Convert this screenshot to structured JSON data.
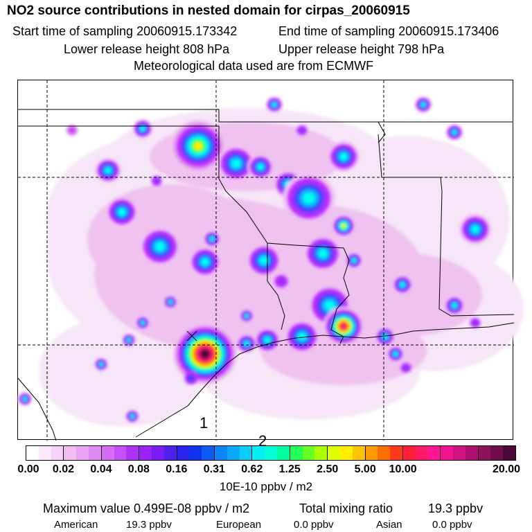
{
  "header": {
    "title": "NO2 source contributions in nested domain for cirpas_20060915",
    "start_label": "Start time of sampling 20060915.173342",
    "end_label": "End time of sampling 20060915.173406",
    "lower_label": "Lower release height  808 hPa",
    "upper_label": "Upper release height  798 hPa",
    "met_label": "Meteorological data used are from ECMWF"
  },
  "map": {
    "site_labels": [
      "1",
      "2"
    ],
    "colors": {
      "faint": "#f7e6f7",
      "light_pink": "#efc2ef",
      "pink": "#e090f0",
      "magenta": "#cc33ff",
      "violet": "#9933ff",
      "blue": "#3344ff",
      "sky": "#11aaff",
      "cyan": "#00ffee",
      "green": "#33ff33",
      "yellow": "#ffee00",
      "orange": "#ff9900",
      "red": "#ff2222",
      "hotpink": "#ff1493",
      "maroon": "#7a1040",
      "dark": "#3a0a30"
    }
  },
  "colorbar": {
    "colors": [
      "#ffffff",
      "#fbe8fb",
      "#f6d2f6",
      "#f0bcf2",
      "#e9a3f2",
      "#e08af2",
      "#d46ff5",
      "#c550f8",
      "#b031fa",
      "#9b22f8",
      "#7a1cf4",
      "#5020f0",
      "#2a22ef",
      "#0f33f0",
      "#0b5cf4",
      "#0a84f7",
      "#09a8f9",
      "#08cdf9",
      "#06eef4",
      "#00ffd6",
      "#00ffa0",
      "#22ff55",
      "#66ff22",
      "#aaff00",
      "#dfff00",
      "#ffee00",
      "#ffc400",
      "#ff9a00",
      "#ff6f00",
      "#ff3a1a",
      "#ff1f3a",
      "#ff1a66",
      "#ff1493",
      "#f0128f",
      "#d0127f",
      "#b0106f",
      "#901060",
      "#6e0c4c",
      "#4c0838"
    ],
    "tick_every": 3,
    "tick_labels": [
      "0.00",
      "0.02",
      "0.04",
      "0.08",
      "0.16",
      "0.31",
      "0.62",
      "1.25",
      "2.50",
      "5.00",
      "10.00",
      "20.00"
    ],
    "units": "10E-10 ppbv / m2"
  },
  "footer": {
    "max_label": "Maximum value  0.499E-08 ppbv / m2",
    "total_label": "Total mixing ratio",
    "total_value": "19.3 ppbv",
    "american_label": "American",
    "american_value": "19.3 ppbv",
    "european_label": "European",
    "european_value": "0.0 ppbv",
    "asian_label": "Asian",
    "asian_value": "0.0 ppbv"
  }
}
